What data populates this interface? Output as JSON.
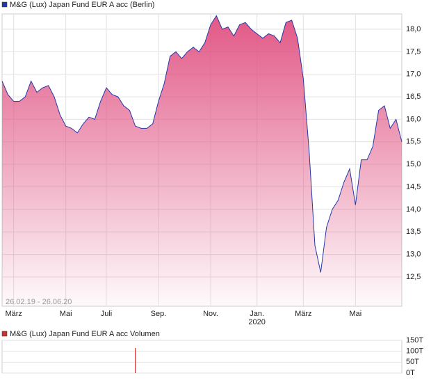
{
  "chart_data": [
    {
      "type": "line",
      "series": [
        {
          "name": "M&G (Lux) Japan Fund EUR A acc (Berlin)",
          "color": "#2338a8",
          "fill": "#e05080",
          "values": [
            16.85,
            16.55,
            16.4,
            16.4,
            16.5,
            16.85,
            16.6,
            16.7,
            16.75,
            16.5,
            16.1,
            15.85,
            15.8,
            15.7,
            15.9,
            16.05,
            16.0,
            16.4,
            16.7,
            16.55,
            16.5,
            16.3,
            16.2,
            15.85,
            15.8,
            15.8,
            15.9,
            16.4,
            16.8,
            17.4,
            17.5,
            17.35,
            17.5,
            17.6,
            17.5,
            17.7,
            18.1,
            18.3,
            18.0,
            18.05,
            17.85,
            18.1,
            18.15,
            18.0,
            17.9,
            17.8,
            17.9,
            17.85,
            17.7,
            18.15,
            18.2,
            17.8,
            16.9,
            15.3,
            13.2,
            12.6,
            13.6,
            14.0,
            14.2,
            14.6,
            14.9,
            14.1,
            15.1,
            15.1,
            15.4,
            16.2,
            16.3,
            15.8,
            16.0,
            15.5
          ]
        }
      ],
      "categories": [
        null,
        null,
        "März",
        null,
        null,
        null,
        null,
        null,
        null,
        null,
        null,
        "Mai",
        null,
        null,
        null,
        null,
        null,
        null,
        "Juli",
        null,
        null,
        null,
        null,
        null,
        null,
        null,
        null,
        "Sep.",
        null,
        null,
        null,
        null,
        null,
        null,
        null,
        null,
        "Nov.",
        null,
        null,
        null,
        null,
        null,
        null,
        null,
        "Jan.",
        null,
        null,
        null,
        null,
        null,
        null,
        null,
        "März",
        null,
        null,
        null,
        null,
        null,
        null,
        null,
        null,
        "Mai",
        null,
        null,
        null,
        null,
        null,
        null,
        null,
        null
      ],
      "x_sublabel": "2020",
      "annotation": "26.02.19 - 26.06.20",
      "ylim": [
        11.85,
        18.34
      ],
      "yticks": [
        {
          "value": 12.5,
          "label": "12,5"
        },
        {
          "value": 13.0,
          "label": "13,0"
        },
        {
          "value": 13.5,
          "label": "13,5"
        },
        {
          "value": 14.0,
          "label": "14,0"
        },
        {
          "value": 14.5,
          "label": "14,5"
        },
        {
          "value": 15.0,
          "label": "15,0"
        },
        {
          "value": 15.5,
          "label": "15,5"
        },
        {
          "value": 16.0,
          "label": "16,0"
        },
        {
          "value": 16.5,
          "label": "16,5"
        },
        {
          "value": 17.0,
          "label": "17,0"
        },
        {
          "value": 17.5,
          "label": "17,5"
        },
        {
          "value": 18.0,
          "label": "18,0"
        }
      ],
      "grid": true
    },
    {
      "type": "bar",
      "series": [
        {
          "name": "M&G (Lux) Japan Fund EUR A acc Volumen",
          "color": "#c83232",
          "values": [
            0,
            0,
            0,
            0,
            0,
            0,
            0,
            0,
            0,
            0,
            0,
            0,
            0,
            0,
            0,
            0,
            0,
            0,
            0,
            0,
            0,
            0,
            0,
            115000,
            0,
            0,
            0,
            0,
            0,
            0,
            0,
            0,
            0,
            0,
            0,
            0,
            0,
            0,
            0,
            0,
            0,
            0,
            0,
            0,
            0,
            0,
            0,
            0,
            0,
            0,
            0,
            0,
            0,
            0,
            0,
            0,
            0,
            0,
            0,
            0,
            0,
            0,
            0,
            0,
            0,
            0,
            0,
            0,
            0,
            0
          ]
        }
      ],
      "ylim": [
        0,
        150000
      ],
      "yticks": [
        {
          "value": 0,
          "label": "0T"
        },
        {
          "value": 50000,
          "label": "50T"
        },
        {
          "value": 100000,
          "label": "100T"
        },
        {
          "value": 150000,
          "label": "150T"
        }
      ],
      "grid": true
    }
  ]
}
